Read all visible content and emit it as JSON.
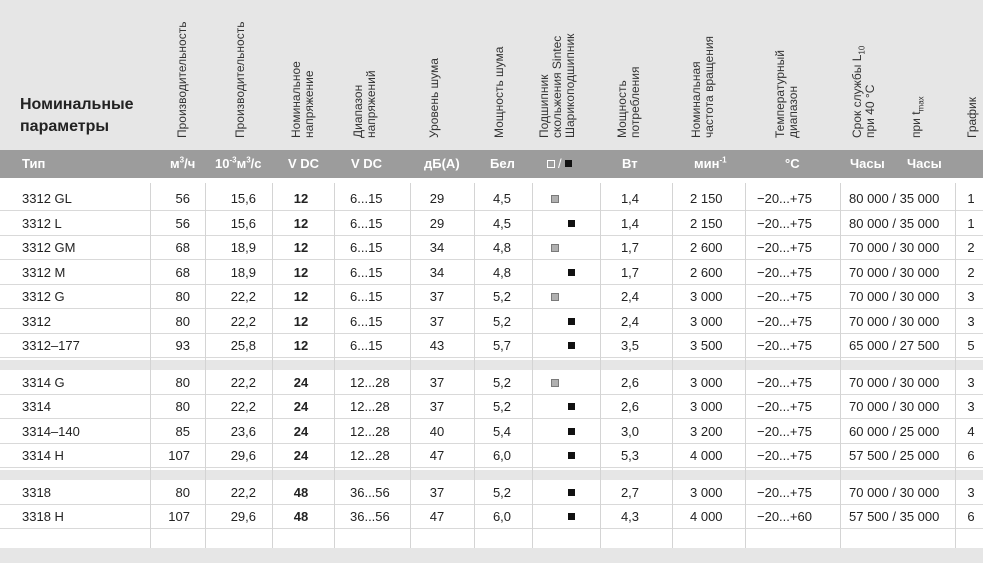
{
  "header": {
    "title_line1": "Номинальные",
    "title_line2": "параметры",
    "col_prod1": "Производительность",
    "col_prod2": "Производительность",
    "col_voltage_1": "Номинальное",
    "col_voltage_2": "напряжение",
    "col_range_1": "Диапазон",
    "col_range_2": "напряжений",
    "col_noise_level": "Уровень шума",
    "col_noise_power": "Мощность шума",
    "col_bearing_1": "Подшипник",
    "col_bearing_2": "скольжения Sintec",
    "col_bearing_3": "Шарикоподшипник",
    "col_power_1": "Мощность",
    "col_power_2": "потребления",
    "col_speed_1": "Номинальная",
    "col_speed_2": "частота вращения",
    "col_temp_1": "Температурный",
    "col_temp_2": "диапазон",
    "col_life_1": "Срок службы L",
    "col_life_1_sub": "10",
    "col_life_2": "при 40 °С",
    "col_tmax": "при t",
    "col_tmax_sub": "max",
    "col_graph": "График"
  },
  "units": {
    "type": "Тип",
    "flow1_a": "м",
    "flow1_sup": "3",
    "flow1_b": "/ч",
    "flow2_a": "10",
    "flow2_sup1": "-3",
    "flow2_b": "м",
    "flow2_sup2": "3",
    "flow2_c": "/с",
    "voltage": "V DC",
    "range": "V DC",
    "noise_level": "дБ(А)",
    "noise_power": "Бел",
    "bearing_sep": "/",
    "power": "Вт",
    "speed": "мин",
    "speed_sup": "-1",
    "temp": "°С",
    "life1": "Часы",
    "life2": "Часы"
  },
  "groups": [
    {
      "rows": [
        {
          "type": "3312 GL",
          "flow1": "56",
          "flow2": "15,6",
          "voltage": "12",
          "range": "6...15",
          "noise_level": "29",
          "noise_power": "4,5",
          "bearing": "sintec",
          "power": "1,4",
          "speed": "2 150",
          "temp": "−20...+75",
          "life": "80 000 / 35 000",
          "graph": "1"
        },
        {
          "type": "3312 L",
          "flow1": "56",
          "flow2": "15,6",
          "voltage": "12",
          "range": "6...15",
          "noise_level": "29",
          "noise_power": "4,5",
          "bearing": "ball",
          "power": "1,4",
          "speed": "2 150",
          "temp": "−20...+75",
          "life": "80 000 / 35 000",
          "graph": "1"
        },
        {
          "type": "3312 GM",
          "flow1": "68",
          "flow2": "18,9",
          "voltage": "12",
          "range": "6...15",
          "noise_level": "34",
          "noise_power": "4,8",
          "bearing": "sintec",
          "power": "1,7",
          "speed": "2 600",
          "temp": "−20...+75",
          "life": "70 000 / 30 000",
          "graph": "2"
        },
        {
          "type": "3312 M",
          "flow1": "68",
          "flow2": "18,9",
          "voltage": "12",
          "range": "6...15",
          "noise_level": "34",
          "noise_power": "4,8",
          "bearing": "ball",
          "power": "1,7",
          "speed": "2 600",
          "temp": "−20...+75",
          "life": "70 000 / 30 000",
          "graph": "2"
        },
        {
          "type": "3312 G",
          "flow1": "80",
          "flow2": "22,2",
          "voltage": "12",
          "range": "6...15",
          "noise_level": "37",
          "noise_power": "5,2",
          "bearing": "sintec",
          "power": "2,4",
          "speed": "3 000",
          "temp": "−20...+75",
          "life": "70 000 / 30 000",
          "graph": "3"
        },
        {
          "type": "3312",
          "flow1": "80",
          "flow2": "22,2",
          "voltage": "12",
          "range": "6...15",
          "noise_level": "37",
          "noise_power": "5,2",
          "bearing": "ball",
          "power": "2,4",
          "speed": "3 000",
          "temp": "−20...+75",
          "life": "70 000 / 30 000",
          "graph": "3"
        },
        {
          "type": "3312–177",
          "flow1": "93",
          "flow2": "25,8",
          "voltage": "12",
          "range": "6...15",
          "noise_level": "43",
          "noise_power": "5,7",
          "bearing": "ball",
          "power": "3,5",
          "speed": "3 500",
          "temp": "−20...+75",
          "life": "65 000 / 27 500",
          "graph": "5"
        }
      ]
    },
    {
      "rows": [
        {
          "type": "3314 G",
          "flow1": "80",
          "flow2": "22,2",
          "voltage": "24",
          "range": "12...28",
          "noise_level": "37",
          "noise_power": "5,2",
          "bearing": "sintec",
          "power": "2,6",
          "speed": "3 000",
          "temp": "−20...+75",
          "life": "70 000 / 30 000",
          "graph": "3"
        },
        {
          "type": "3314",
          "flow1": "80",
          "flow2": "22,2",
          "voltage": "24",
          "range": "12...28",
          "noise_level": "37",
          "noise_power": "5,2",
          "bearing": "ball",
          "power": "2,6",
          "speed": "3 000",
          "temp": "−20...+75",
          "life": "70 000 / 30 000",
          "graph": "3"
        },
        {
          "type": "3314–140",
          "flow1": "85",
          "flow2": "23,6",
          "voltage": "24",
          "range": "12...28",
          "noise_level": "40",
          "noise_power": "5,4",
          "bearing": "ball",
          "power": "3,0",
          "speed": "3 200",
          "temp": "−20...+75",
          "life": "60 000 / 25 000",
          "graph": "4"
        },
        {
          "type": "3314 H",
          "flow1": "107",
          "flow2": "29,6",
          "voltage": "24",
          "range": "12...28",
          "noise_level": "47",
          "noise_power": "6,0",
          "bearing": "ball",
          "power": "5,3",
          "speed": "4 000",
          "temp": "−20...+75",
          "life": "57 500 / 25 000",
          "graph": "6"
        }
      ]
    },
    {
      "rows": [
        {
          "type": "3318",
          "flow1": "80",
          "flow2": "22,2",
          "voltage": "48",
          "range": "36...56",
          "noise_level": "37",
          "noise_power": "5,2",
          "bearing": "ball",
          "power": "2,7",
          "speed": "3 000",
          "temp": "−20...+75",
          "life": "70 000 / 30 000",
          "graph": "3"
        },
        {
          "type": "3318 H",
          "flow1": "107",
          "flow2": "29,6",
          "voltage": "48",
          "range": "36...56",
          "noise_level": "47",
          "noise_power": "6,0",
          "bearing": "ball",
          "power": "4,3",
          "speed": "4 000",
          "temp": "−20...+60",
          "life": "57 500 / 35 000",
          "graph": "6"
        }
      ]
    }
  ],
  "colors": {
    "header_bg": "#e6e6e6",
    "unit_bar_bg": "#9c9c9c",
    "sintec_marker": "#b0b0b0",
    "ball_marker": "#111111"
  }
}
